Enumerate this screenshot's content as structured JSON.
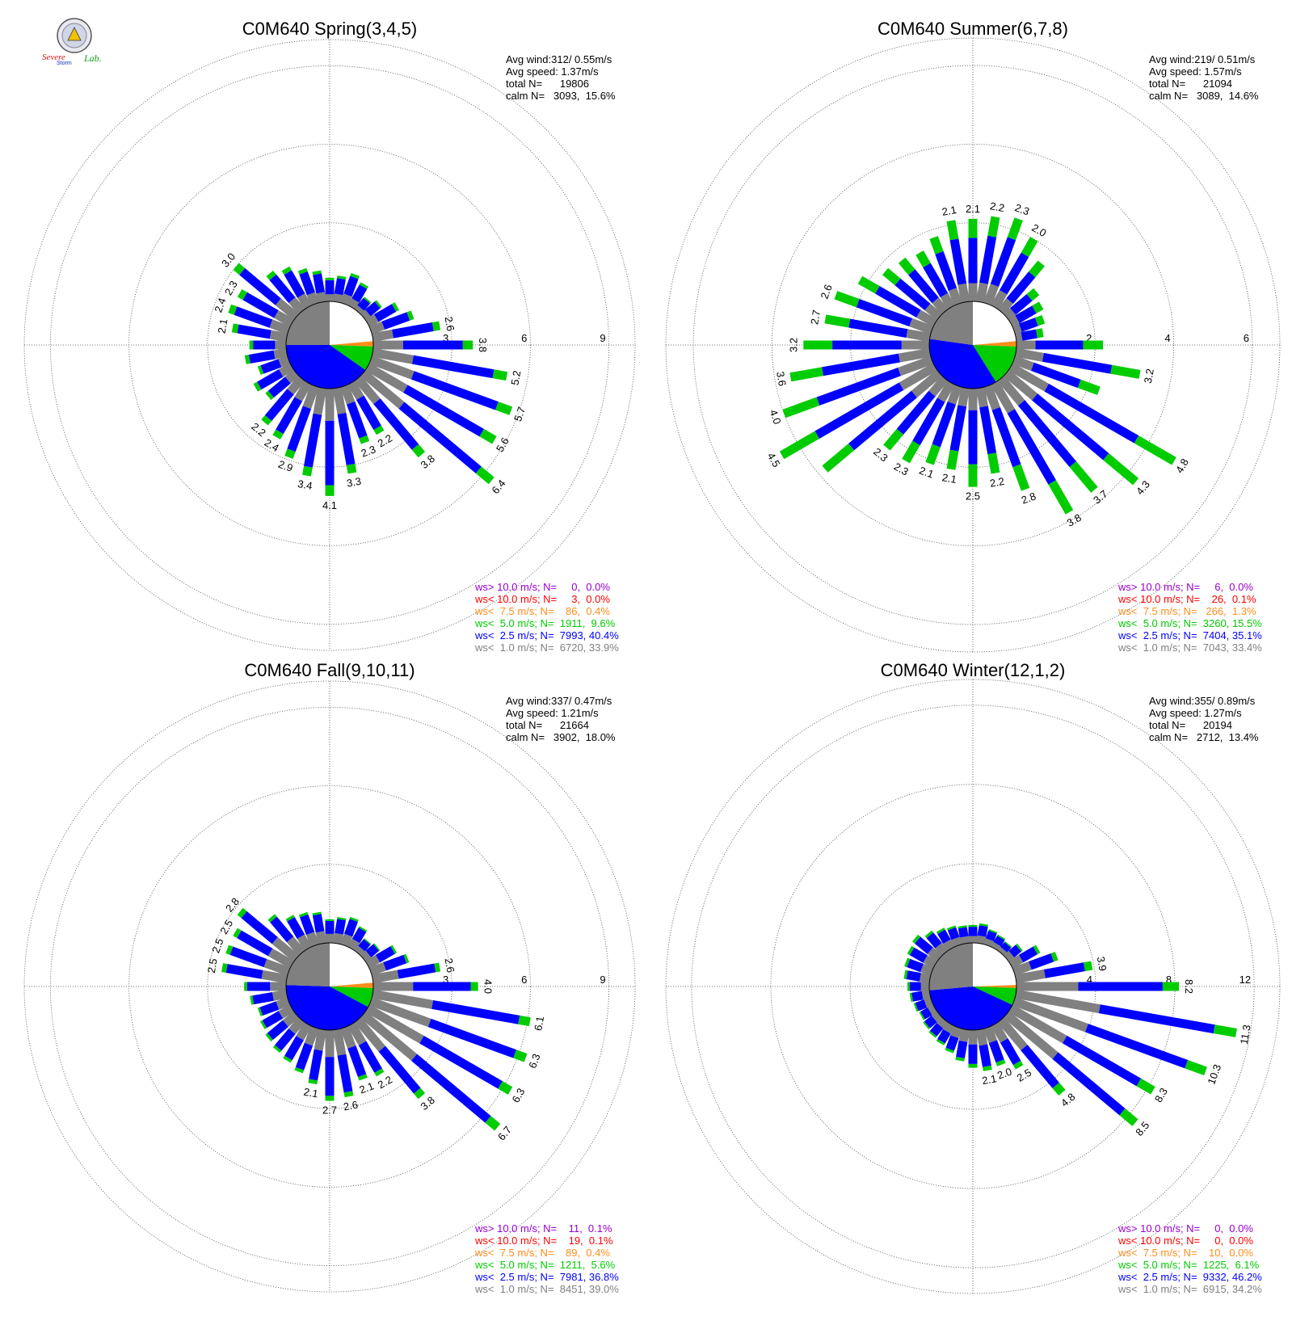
{
  "logo": {
    "line1": "Severe",
    "line2": "Storm",
    "line3": "Lab."
  },
  "colors": {
    "lt1": "#808080",
    "lt25": "#0000ff",
    "lt5": "#00cc00",
    "lt75": "#ff8c1a",
    "lt10": "#ff0000",
    "gt10": "#9900cc",
    "grid": "#666666"
  },
  "chart_data": [
    {
      "type": "windrose",
      "title": "C0M640 Spring(3,4,5)",
      "stats": [
        "Avg wind:312/ 0.55m/s",
        "Avg speed: 1.37m/s",
        "total N=      19806",
        "calm N=   3093,  15.6%"
      ],
      "rings": [
        3,
        6,
        9
      ],
      "rmax": 10.0,
      "calm_pct": 15.6,
      "class_frac": [
        0.3,
        0.6,
        0.1
      ],
      "totals": [
        0.9,
        1.0,
        1.2,
        1.0,
        0.6,
        0.8,
        1.3,
        1.7,
        2.6,
        3.8,
        5.2,
        5.7,
        5.6,
        6.4,
        3.8,
        2.2,
        2.3,
        3.3,
        4.1,
        3.4,
        2.9,
        2.4,
        2.2,
        1.4,
        1.6,
        1.2,
        1.6,
        1.4,
        2.1,
        2.4,
        2.3,
        3.0,
        1.9,
        1.7,
        1.4,
        1.2
      ],
      "labeled": [
        8,
        9,
        10,
        11,
        12,
        13,
        14,
        15,
        16,
        17,
        18,
        19,
        20,
        21,
        22,
        28,
        29,
        30,
        31
      ],
      "legend": [
        {
          "text": "ws> 10.0 m/s; N=     0,  0.0%",
          "color": "#9900cc"
        },
        {
          "text": "ws< 10.0 m/s; N=     3,  0.0%",
          "color": "#ff0000"
        },
        {
          "text": "ws<  7.5 m/s; N=    86,  0.4%",
          "color": "#ff8c1a"
        },
        {
          "text": "ws<  5.0 m/s; N=  1911,  9.6%",
          "color": "#00cc00"
        },
        {
          "text": "ws<  2.5 m/s; N=  7993, 40.4%",
          "color": "#0000ff"
        },
        {
          "text": "ws<  1.0 m/s; N=  6720, 33.9%",
          "color": "#808080"
        }
      ],
      "wedges": [
        {
          "from": 0,
          "to": 30,
          "color": "#ffffff"
        },
        {
          "from": 30,
          "to": 85,
          "color": "#ffffff"
        },
        {
          "from": 85,
          "to": 92,
          "color": "#ff8c1a"
        },
        {
          "from": 92,
          "to": 125,
          "color": "#00cc00"
        },
        {
          "from": 125,
          "to": 270,
          "color": "#0000ff"
        },
        {
          "from": 270,
          "to": 360,
          "color": "#808080"
        }
      ]
    },
    {
      "type": "windrose",
      "title": "C0M640 Summer(6,7,8)",
      "stats": [
        "Avg wind:219/ 0.51m/s",
        "Avg speed: 1.57m/s",
        "total N=      21094",
        "calm N=   3089,  14.6%"
      ],
      "rings": [
        2,
        4,
        6
      ],
      "rmax": 6.7,
      "calm_pct": 14.6,
      "class_frac": [
        0.22,
        0.55,
        0.23
      ],
      "totals": [
        2.1,
        2.2,
        2.3,
        2.0,
        1.6,
        1.0,
        0.9,
        0.8,
        0.7,
        2.2,
        3.2,
        2.3,
        4.8,
        4.3,
        3.7,
        3.8,
        2.8,
        2.2,
        2.5,
        2.1,
        2.1,
        2.3,
        2.3,
        3.8,
        4.5,
        4.0,
        3.6,
        3.2,
        2.7,
        2.6,
        2.2,
        1.8,
        1.7,
        1.6,
        1.8,
        2.1
      ],
      "labeled": [
        0,
        1,
        2,
        3,
        10,
        12,
        13,
        14,
        15,
        16,
        17,
        18,
        19,
        20,
        21,
        22,
        24,
        25,
        26,
        27,
        28,
        29,
        35
      ],
      "legend": [
        {
          "text": "ws> 10.0 m/s; N=     6,  0.0%",
          "color": "#9900cc"
        },
        {
          "text": "ws< 10.0 m/s; N=    26,  0.1%",
          "color": "#ff0000"
        },
        {
          "text": "ws<  7.5 m/s; N=   266,  1.3%",
          "color": "#ff8c1a"
        },
        {
          "text": "ws<  5.0 m/s; N=  3260, 15.5%",
          "color": "#00cc00"
        },
        {
          "text": "ws<  2.5 m/s; N=  7404, 35.1%",
          "color": "#0000ff"
        },
        {
          "text": "ws<  1.0 m/s; N=  7043, 33.4%",
          "color": "#808080"
        }
      ],
      "wedges": [
        {
          "from": 0,
          "to": 35,
          "color": "#ffffff"
        },
        {
          "from": 35,
          "to": 85,
          "color": "#ffffff"
        },
        {
          "from": 85,
          "to": 92,
          "color": "#ff8c1a"
        },
        {
          "from": 92,
          "to": 148,
          "color": "#00cc00"
        },
        {
          "from": 148,
          "to": 278,
          "color": "#0000ff"
        },
        {
          "from": 278,
          "to": 360,
          "color": "#808080"
        }
      ]
    },
    {
      "type": "windrose",
      "title": "C0M640 Fall(9,10,11)",
      "stats": [
        "Avg wind:337/ 0.47m/s",
        "Avg speed: 1.21m/s",
        "total N=      21664",
        "calm N=   3902,  18.0%"
      ],
      "rings": [
        3,
        6,
        9
      ],
      "rmax": 10.0,
      "calm_pct": 18.0,
      "class_frac": [
        0.38,
        0.55,
        0.07
      ],
      "totals": [
        0.9,
        1.0,
        1.1,
        0.9,
        0.6,
        0.7,
        1.2,
        1.5,
        2.6,
        4.0,
        6.1,
        6.3,
        6.3,
        6.7,
        3.8,
        2.2,
        2.1,
        2.6,
        2.7,
        2.1,
        1.8,
        1.6,
        1.5,
        1.4,
        1.3,
        1.2,
        1.4,
        1.6,
        2.5,
        2.5,
        2.5,
        2.8,
        1.8,
        1.4,
        1.3,
        1.2
      ],
      "labeled": [
        8,
        9,
        10,
        11,
        12,
        13,
        14,
        15,
        16,
        17,
        18,
        19,
        28,
        29,
        30,
        31
      ],
      "legend": [
        {
          "text": "ws> 10.0 m/s; N=    11,  0.1%",
          "color": "#9900cc"
        },
        {
          "text": "ws< 10.0 m/s; N=    19,  0.1%",
          "color": "#ff0000"
        },
        {
          "text": "ws<  7.5 m/s; N=    89,  0.4%",
          "color": "#ff8c1a"
        },
        {
          "text": "ws<  5.0 m/s; N=  1211,  5.6%",
          "color": "#00cc00"
        },
        {
          "text": "ws<  2.5 m/s; N=  7981, 36.8%",
          "color": "#0000ff"
        },
        {
          "text": "ws<  1.0 m/s; N=  8451, 39.0%",
          "color": "#808080"
        }
      ],
      "wedges": [
        {
          "from": 0,
          "to": 30,
          "color": "#ffffff"
        },
        {
          "from": 30,
          "to": 85,
          "color": "#ffffff"
        },
        {
          "from": 85,
          "to": 92,
          "color": "#ff8c1a"
        },
        {
          "from": 92,
          "to": 118,
          "color": "#00cc00"
        },
        {
          "from": 118,
          "to": 272,
          "color": "#0000ff"
        },
        {
          "from": 272,
          "to": 360,
          "color": "#808080"
        }
      ]
    },
    {
      "type": "windrose",
      "title": "C0M640 Winter(12,1,2)",
      "stats": [
        "Avg wind:355/ 0.89m/s",
        "Avg speed: 1.27m/s",
        "total N=      20194",
        "calm N=   2712,  13.4%"
      ],
      "rings": [
        4,
        8,
        12
      ],
      "rmax": 13.3,
      "calm_pct": 13.4,
      "class_frac": [
        0.38,
        0.52,
        0.1
      ],
      "totals": [
        0.9,
        1.0,
        0.8,
        0.7,
        0.6,
        0.9,
        1.6,
        2.3,
        3.9,
        8.2,
        11.3,
        10.3,
        8.3,
        8.5,
        4.8,
        2.5,
        2.0,
        2.1,
        1.9,
        1.6,
        1.3,
        1.1,
        1.0,
        0.9,
        0.8,
        0.9,
        1.0,
        1.1,
        1.3,
        1.4,
        1.5,
        1.6,
        1.3,
        1.1,
        1.0,
        0.9
      ],
      "labeled": [
        8,
        9,
        10,
        11,
        12,
        13,
        14,
        15,
        16,
        17
      ],
      "legend": [
        {
          "text": "ws> 10.0 m/s; N=     0,  0.0%",
          "color": "#9900cc"
        },
        {
          "text": "ws< 10.0 m/s; N=     0,  0.0%",
          "color": "#ff0000"
        },
        {
          "text": "ws<  7.5 m/s; N=    10,  0.0%",
          "color": "#ff8c1a"
        },
        {
          "text": "ws<  5.0 m/s; N=  1225,  6.1%",
          "color": "#00cc00"
        },
        {
          "text": "ws<  2.5 m/s; N=  9332, 46.2%",
          "color": "#0000ff"
        },
        {
          "text": "ws<  1.0 m/s; N=  6915, 34.2%",
          "color": "#808080"
        }
      ],
      "wedges": [
        {
          "from": 0,
          "to": 35,
          "color": "#ffffff"
        },
        {
          "from": 35,
          "to": 88,
          "color": "#ffffff"
        },
        {
          "from": 88,
          "to": 92,
          "color": "#ff8c1a"
        },
        {
          "from": 92,
          "to": 115,
          "color": "#00cc00"
        },
        {
          "from": 115,
          "to": 265,
          "color": "#0000ff"
        },
        {
          "from": 265,
          "to": 360,
          "color": "#808080"
        }
      ]
    }
  ]
}
